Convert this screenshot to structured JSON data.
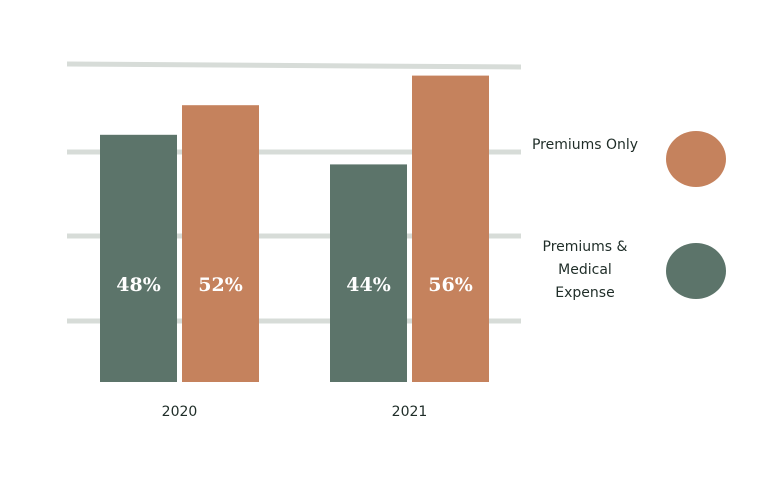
{
  "chart_data": {
    "type": "bar",
    "title": "",
    "xlabel": "",
    "ylabel": "",
    "categories": [
      "2020",
      "2021"
    ],
    "series": [
      {
        "name": "Premiums & Medical Expense",
        "values": [
          48,
          44
        ],
        "labels": [
          "48%",
          "44%"
        ],
        "color": "#5c746a"
      },
      {
        "name": "Premiums Only",
        "values": [
          52,
          56
        ],
        "labels": [
          "52%",
          "56%"
        ],
        "color": "#c5825d"
      }
    ],
    "grid": true,
    "legend_placement": "right",
    "legend": [
      {
        "label": "Premiums Only",
        "color": "#c5825d"
      },
      {
        "label": "Premiums & Medical Expense",
        "color": "#5c746a"
      }
    ]
  }
}
